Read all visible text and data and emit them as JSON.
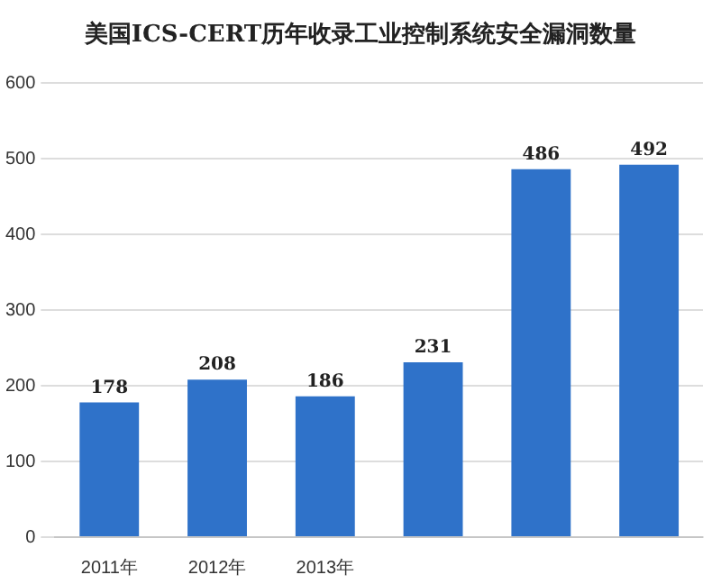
{
  "chart_data": {
    "type": "bar",
    "title": "美国ICS-CERT历年收录工业控制系统安全漏洞数量",
    "categories": [
      "2011年",
      "2012年",
      "2013年",
      null,
      null,
      null
    ],
    "values": [
      178,
      208,
      186,
      231,
      486,
      492
    ],
    "color": "#2f72c9",
    "ylim": [
      0,
      600
    ],
    "yticks": [
      0,
      100,
      200,
      300,
      400,
      500,
      600
    ],
    "grid": "y",
    "data_labels": true
  }
}
